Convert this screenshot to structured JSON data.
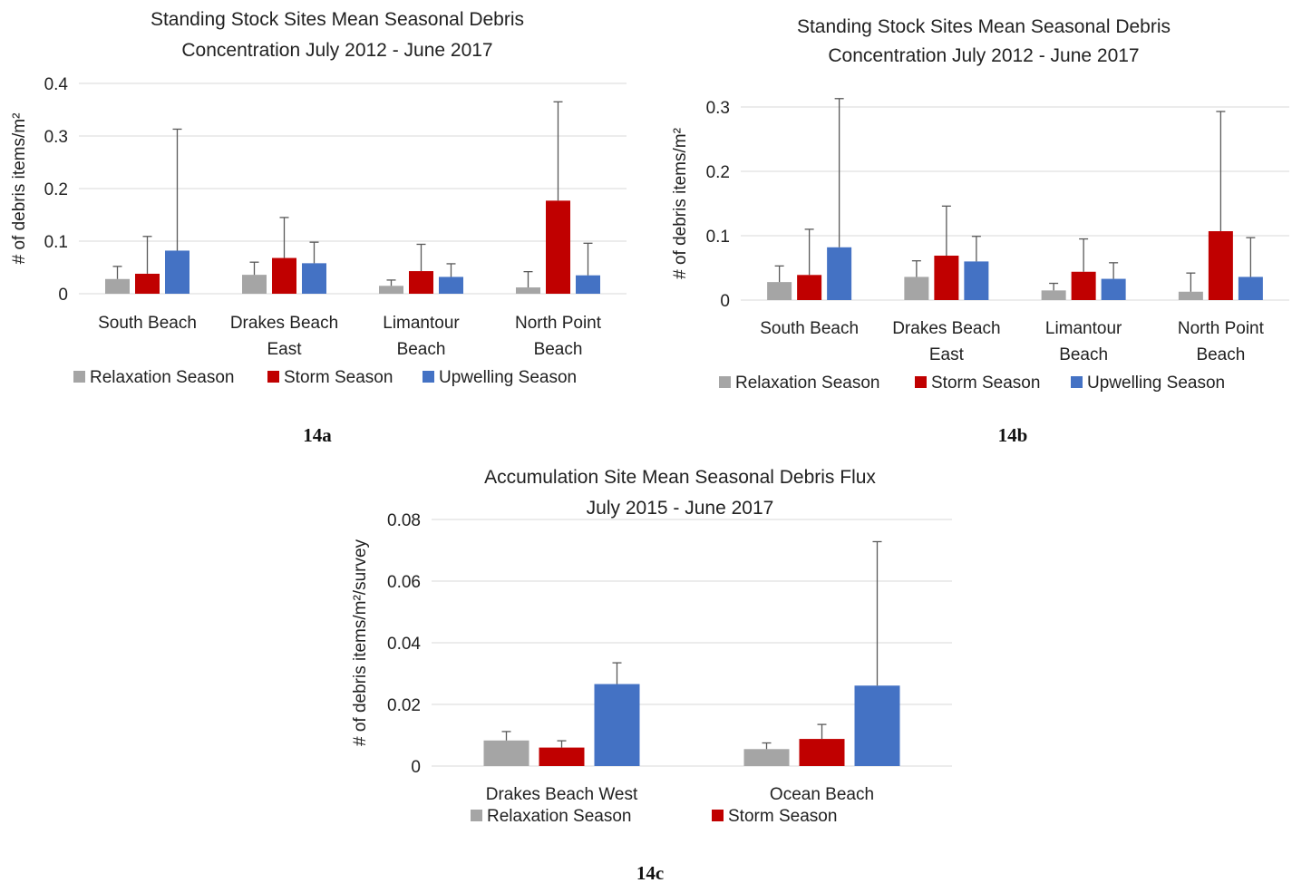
{
  "colors": {
    "Relaxation Season": "#a5a5a5",
    "Storm Season": "#c00000",
    "Upwelling Season": "#4472c4"
  },
  "chart_data": [
    {
      "id": "14a",
      "panel_label": "14a",
      "type": "bar",
      "title_lines": [
        "Standing Stock Sites Mean Seasonal Debris",
        "Concentration July 2012 - June 2017"
      ],
      "ylabel": "# of debris items/m²",
      "ylim": [
        0,
        0.4
      ],
      "yticks": [
        0,
        0.1,
        0.2,
        0.3,
        0.4
      ],
      "ytick_labels": [
        "0",
        "0.1",
        "0.2",
        "0.3",
        "0.4"
      ],
      "grid": true,
      "legend": "bottom",
      "categories": [
        [
          "South Beach"
        ],
        [
          "Drakes Beach",
          "East"
        ],
        [
          "Limantour",
          "Beach"
        ],
        [
          "North Point",
          "Beach"
        ]
      ],
      "series": [
        {
          "name": "Relaxation Season",
          "values": [
            0.028,
            0.036,
            0.015,
            0.012
          ],
          "err_upper": [
            0.052,
            0.06,
            0.026,
            0.042
          ]
        },
        {
          "name": "Storm Season",
          "values": [
            0.038,
            0.068,
            0.043,
            0.177
          ],
          "err_upper": [
            0.109,
            0.145,
            0.094,
            0.365
          ]
        },
        {
          "name": "Upwelling Season",
          "values": [
            0.082,
            0.058,
            0.032,
            0.035
          ],
          "err_upper": [
            0.313,
            0.098,
            0.057,
            0.096
          ]
        }
      ]
    },
    {
      "id": "14b",
      "panel_label": "14b",
      "type": "bar",
      "title_lines": [
        "Standing Stock Sites Mean Seasonal Debris",
        "Concentration July 2012 - June 2017"
      ],
      "ylabel": "# of debris items/m²",
      "ylim": [
        0,
        0.3
      ],
      "yticks": [
        0,
        0.1,
        0.2,
        0.3
      ],
      "ytick_labels": [
        "0",
        "0.1",
        "0.2",
        "0.3"
      ],
      "grid": true,
      "legend": "bottom",
      "categories": [
        [
          "South Beach"
        ],
        [
          "Drakes Beach",
          "East"
        ],
        [
          "Limantour",
          "Beach"
        ],
        [
          "North Point",
          "Beach"
        ]
      ],
      "series": [
        {
          "name": "Relaxation Season",
          "values": [
            0.028,
            0.036,
            0.015,
            0.013
          ],
          "err_upper": [
            0.053,
            0.061,
            0.026,
            0.042
          ]
        },
        {
          "name": "Storm Season",
          "values": [
            0.039,
            0.069,
            0.044,
            0.107
          ],
          "err_upper": [
            0.11,
            0.146,
            0.095,
            0.293
          ]
        },
        {
          "name": "Upwelling Season",
          "values": [
            0.082,
            0.06,
            0.033,
            0.036
          ],
          "err_upper": [
            0.313,
            0.099,
            0.058,
            0.097
          ]
        }
      ]
    },
    {
      "id": "14c",
      "panel_label": "14c",
      "type": "bar",
      "title_lines": [
        "Accumulation Site Mean Seasonal Debris Flux",
        "July 2015 - June 2017"
      ],
      "ylabel": "# of debris items/m²/survey",
      "ylim": [
        0,
        0.08
      ],
      "yticks": [
        0,
        0.02,
        0.04,
        0.06,
        0.08
      ],
      "ytick_labels": [
        "0",
        "0.02",
        "0.04",
        "0.06",
        "0.08"
      ],
      "grid": true,
      "legend": "bottom",
      "legend_series": [
        "Relaxation Season",
        "Storm Season"
      ],
      "categories": [
        [
          "Drakes Beach West"
        ],
        [
          "Ocean Beach"
        ]
      ],
      "series": [
        {
          "name": "Relaxation Season",
          "values": [
            0.0083,
            0.0055
          ],
          "err_upper": [
            0.0112,
            0.0075
          ]
        },
        {
          "name": "Storm Season",
          "values": [
            0.006,
            0.0088
          ],
          "err_upper": [
            0.0082,
            0.0135
          ]
        },
        {
          "name": "Upwelling Season",
          "values": [
            0.0266,
            0.0261
          ],
          "err_upper": [
            0.0335,
            0.0728
          ]
        }
      ]
    }
  ]
}
